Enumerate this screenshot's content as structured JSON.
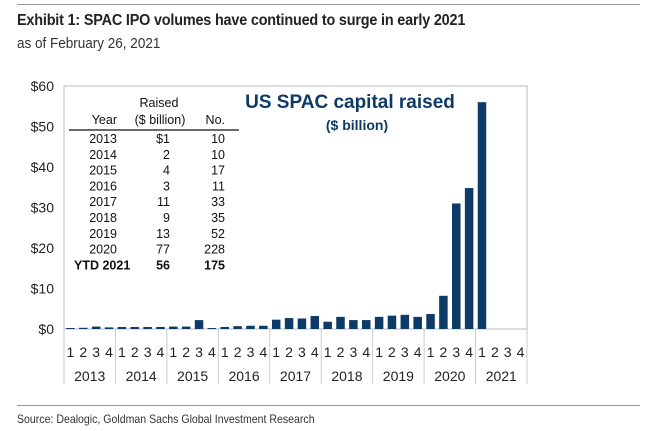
{
  "header": {
    "title": "Exhibit 1: SPAC IPO volumes have continued to surge in early 2021",
    "subtitle": "as of February 26, 2021"
  },
  "footer": {
    "source": "Source: Dealogic, Goldman Sachs Global Investment Research"
  },
  "chart_data": {
    "type": "bar",
    "annotation": [
      "US SPAC capital raised",
      "($ billion)"
    ],
    "bar_color": "#0d3a67",
    "years": [
      "2013",
      "2014",
      "2015",
      "2016",
      "2017",
      "2018",
      "2019",
      "2020",
      "2021"
    ],
    "quarters": [
      "1",
      "2",
      "3",
      "4"
    ],
    "values": [
      0.1,
      0.3,
      0.6,
      0.4,
      0.5,
      0.5,
      0.5,
      0.5,
      0.6,
      0.6,
      2.2,
      0.1,
      0.5,
      0.7,
      0.8,
      0.8,
      2.3,
      2.7,
      2.6,
      3.2,
      1.8,
      3.0,
      2.2,
      2.2,
      3.0,
      3.3,
      3.5,
      3.0,
      3.7,
      8.2,
      31,
      34.8,
      56,
      null,
      null,
      null
    ],
    "yticks": [
      "$0",
      "$10",
      "$20",
      "$30",
      "$40",
      "$50",
      "$60"
    ],
    "ylim": [
      0,
      60
    ],
    "grid": false,
    "inset_table": {
      "headers": [
        "Year",
        "Raised",
        "($ billion)",
        "No."
      ],
      "rows": [
        [
          "2013",
          "$1",
          "10"
        ],
        [
          "2014",
          "2",
          "10"
        ],
        [
          "2015",
          "4",
          "17"
        ],
        [
          "2016",
          "3",
          "11"
        ],
        [
          "2017",
          "11",
          "33"
        ],
        [
          "2018",
          "9",
          "35"
        ],
        [
          "2019",
          "13",
          "52"
        ],
        [
          "2020",
          "77",
          "228"
        ],
        [
          "YTD 2021",
          "56",
          "175"
        ]
      ]
    }
  }
}
